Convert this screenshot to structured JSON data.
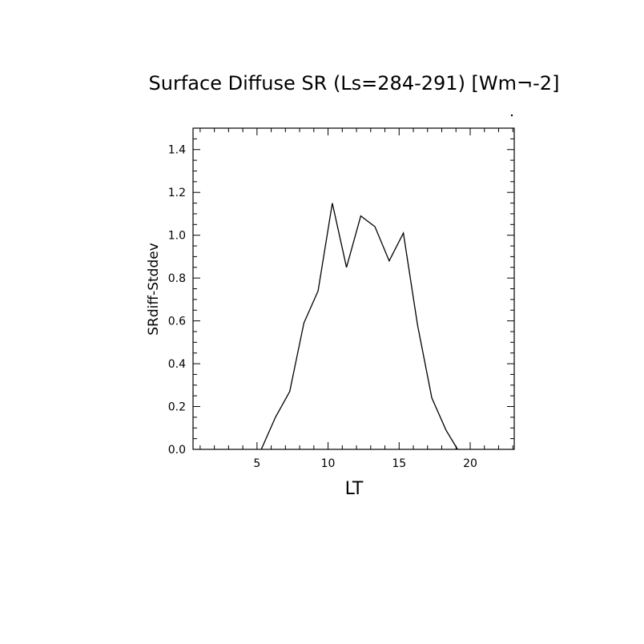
{
  "chart_data": {
    "type": "line",
    "title": "Surface Diffuse SR (Ls=284-291) [Wm¬-2]",
    "xlabel": "LT",
    "ylabel": "SRdiff-Stddev",
    "xlim": [
      0.5,
      23.1
    ],
    "ylim": [
      0.0,
      1.5
    ],
    "xticks": [
      5,
      10,
      15,
      20
    ],
    "yticks": [
      0.0,
      0.2,
      0.4,
      0.6,
      0.8,
      1.0,
      1.2,
      1.4
    ],
    "ytick_labels": [
      "0.0",
      "0.2",
      "0.4",
      "0.6",
      "0.8",
      "1.0",
      "1.2",
      "1.4"
    ],
    "grid": false,
    "series": [
      {
        "x": [
          5.3,
          6.3,
          7.3,
          8.3,
          9.3,
          10.3,
          11.3,
          12.3,
          13.3,
          14.3,
          15.3,
          16.3,
          17.3,
          18.3,
          19.3
        ],
        "y": [
          0.0,
          0.15,
          0.27,
          0.59,
          0.74,
          1.15,
          0.85,
          1.09,
          1.04,
          0.88,
          1.01,
          0.58,
          0.24,
          0.09,
          -0.02
        ]
      }
    ]
  }
}
